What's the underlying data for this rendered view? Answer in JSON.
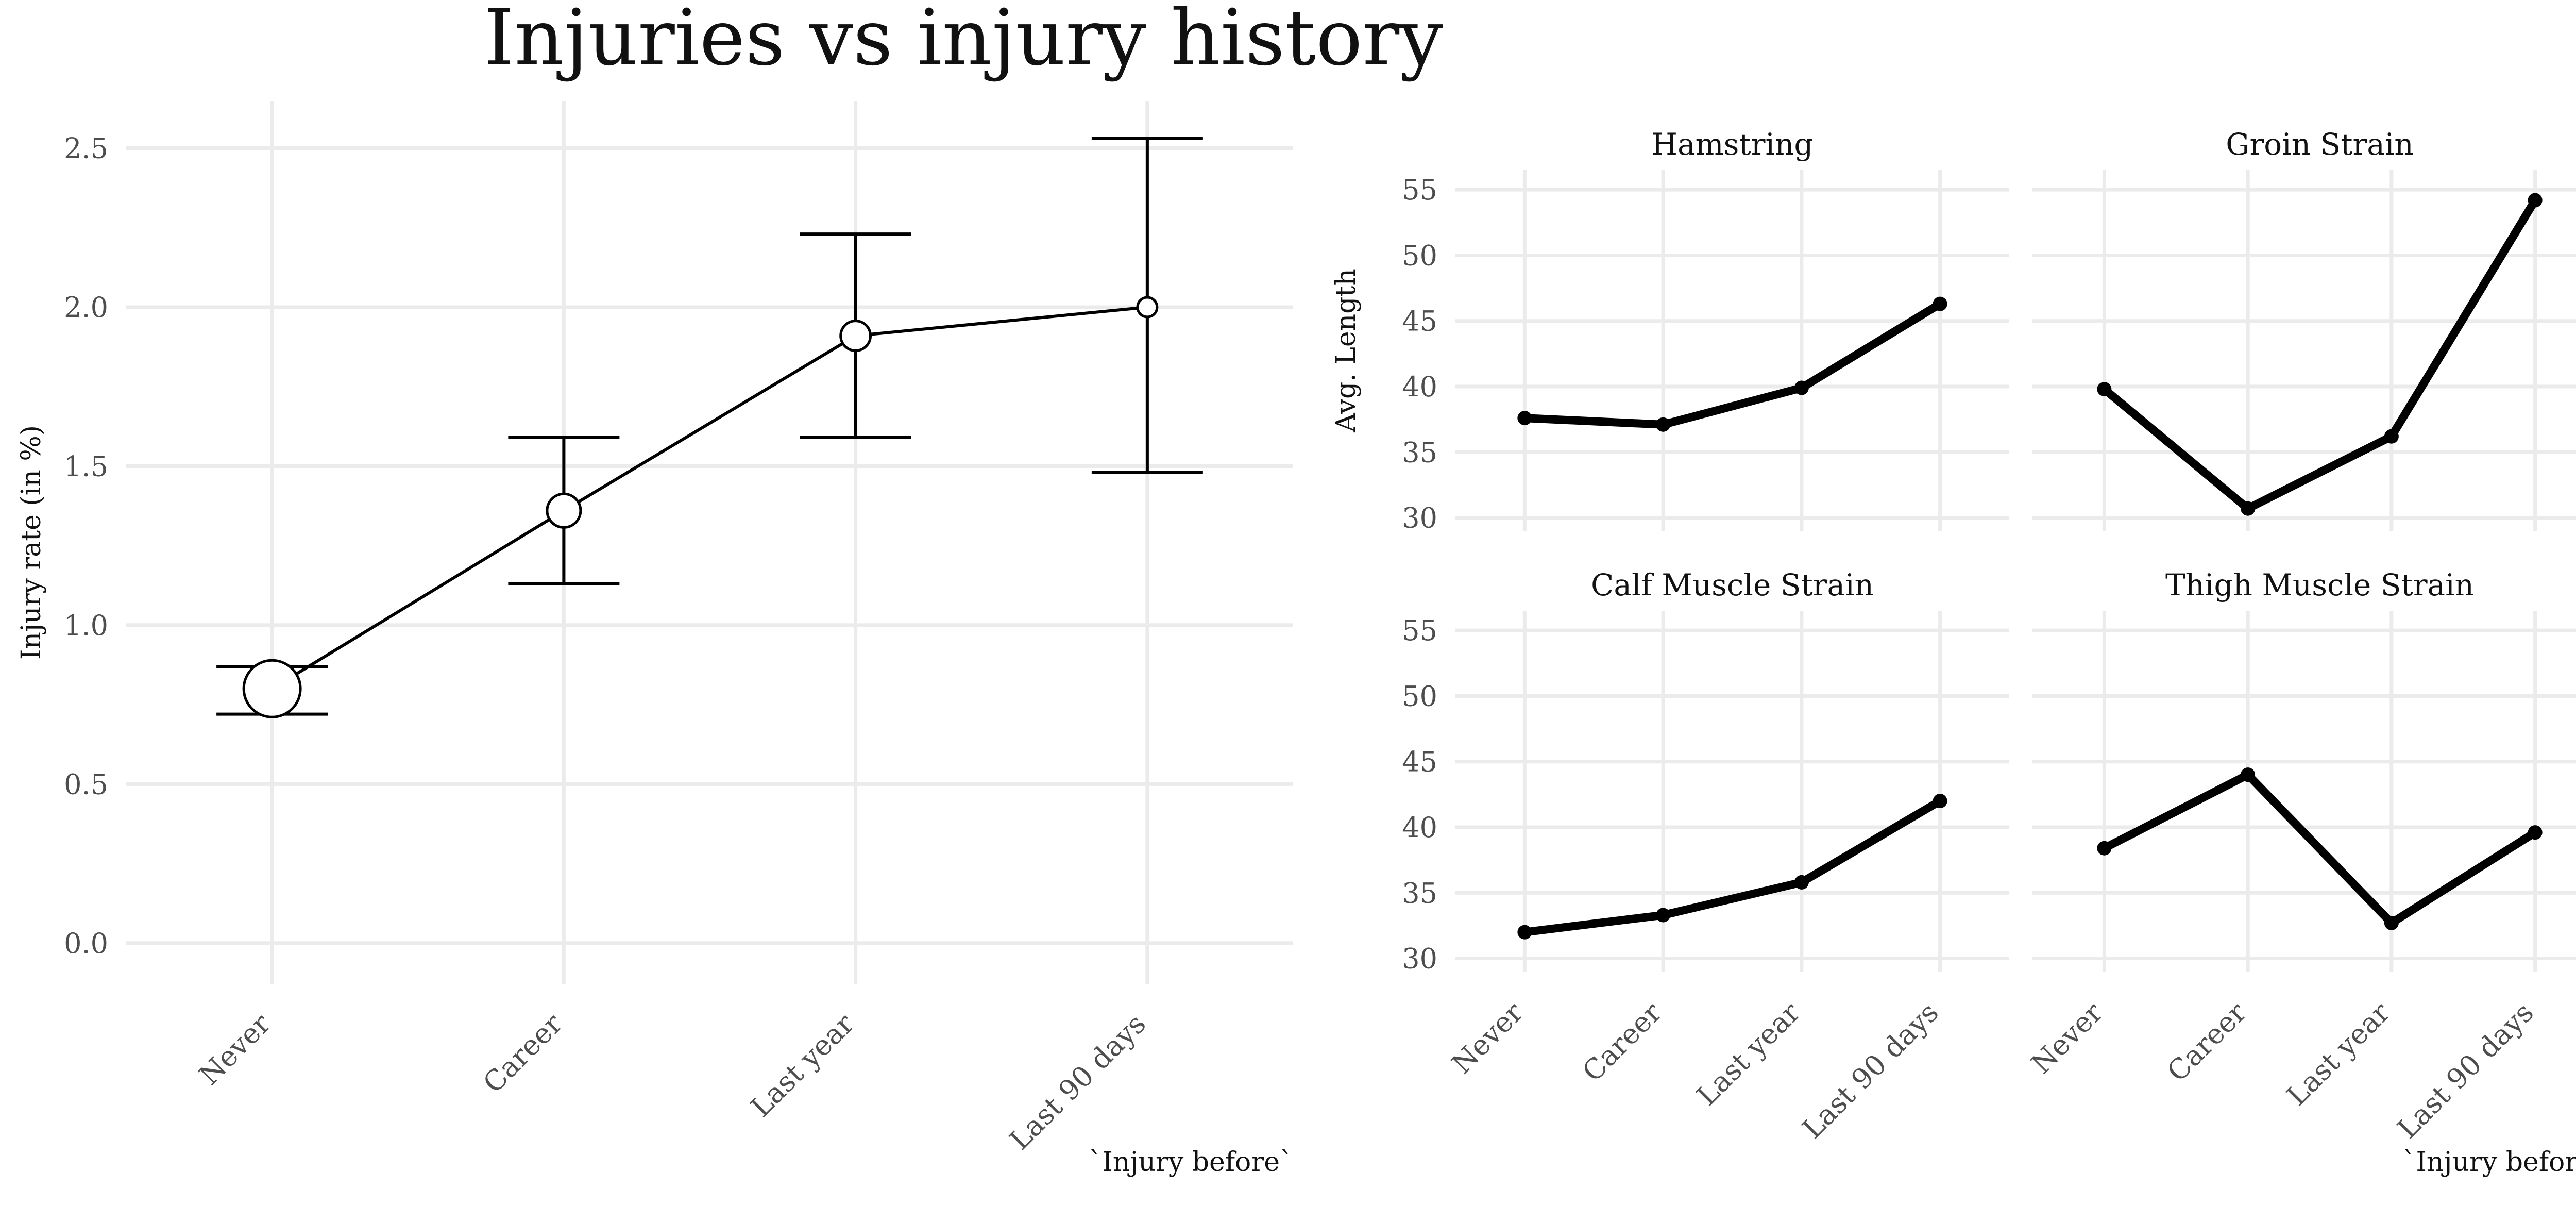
{
  "title": "Injuries vs injury history",
  "colors": {
    "ink": "#000000",
    "grid": "#ebebeb",
    "tick_text": "#4d4d4d",
    "point_fill": "#ffffff"
  },
  "chart_data": [
    {
      "type": "line",
      "variant": "point-range-with-error-bars",
      "categories": [
        "Never",
        "Career",
        "Last year",
        "Last 90 days"
      ],
      "values": [
        0.8,
        1.36,
        1.91,
        2.0
      ],
      "error_low": [
        0.72,
        1.13,
        1.59,
        1.48
      ],
      "error_high": [
        0.87,
        1.59,
        2.23,
        2.53
      ],
      "point_size_relative": [
        1.0,
        0.5,
        0.42,
        0.2
      ],
      "xlabel": "`Injury before`",
      "ylabel": "Injury rate (in %)",
      "yticks": [
        0.0,
        0.5,
        1.0,
        1.5,
        2.0,
        2.5
      ],
      "ytick_labels": [
        "0.0",
        "0.5",
        "1.0",
        "1.5",
        "2.0",
        "2.5"
      ],
      "ylim": [
        -0.13,
        2.65
      ],
      "grid": true
    },
    {
      "type": "line",
      "variant": "facet-grid",
      "categories": [
        "Never",
        "Career",
        "Last year",
        "Last 90 days"
      ],
      "xlabel": "`Injury before`",
      "ylabel": "Avg. Length",
      "yticks": [
        30,
        35,
        40,
        45,
        50,
        55
      ],
      "ytick_labels": [
        "30",
        "35",
        "40",
        "45",
        "50",
        "55"
      ],
      "ylim": [
        29,
        56.5
      ],
      "grid": true,
      "panels": [
        {
          "name": "Hamstring",
          "values": [
            37.6,
            37.1,
            39.9,
            46.3
          ]
        },
        {
          "name": "Groin Strain",
          "values": [
            39.8,
            30.7,
            36.2,
            54.2
          ]
        },
        {
          "name": "Calf Muscle Strain",
          "values": [
            32.0,
            33.3,
            35.8,
            42.0
          ]
        },
        {
          "name": "Thigh Muscle Strain",
          "values": [
            38.4,
            44.0,
            32.7,
            39.6
          ]
        }
      ]
    }
  ]
}
